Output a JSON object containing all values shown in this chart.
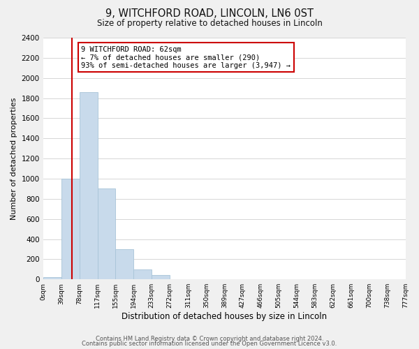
{
  "title": "9, WITCHFORD ROAD, LINCOLN, LN6 0ST",
  "subtitle": "Size of property relative to detached houses in Lincoln",
  "xlabel": "Distribution of detached houses by size in Lincoln",
  "ylabel": "Number of detached properties",
  "bar_color": "#c8daeb",
  "bar_edge_color": "#a8c4d8",
  "vline_color": "#cc0000",
  "vline_x": 62,
  "bin_edges": [
    0,
    39,
    78,
    117,
    155,
    194,
    233,
    272,
    311,
    350,
    389,
    427,
    466,
    505,
    544,
    583,
    622,
    661,
    700,
    738,
    777
  ],
  "bar_heights": [
    20,
    1000,
    1860,
    900,
    300,
    100,
    40,
    0,
    0,
    0,
    0,
    0,
    0,
    0,
    0,
    0,
    0,
    0,
    0,
    0
  ],
  "tick_labels": [
    "0sqm",
    "39sqm",
    "78sqm",
    "117sqm",
    "155sqm",
    "194sqm",
    "233sqm",
    "272sqm",
    "311sqm",
    "350sqm",
    "389sqm",
    "427sqm",
    "466sqm",
    "505sqm",
    "544sqm",
    "583sqm",
    "622sqm",
    "661sqm",
    "700sqm",
    "738sqm",
    "777sqm"
  ],
  "ylim": [
    0,
    2400
  ],
  "yticks": [
    0,
    200,
    400,
    600,
    800,
    1000,
    1200,
    1400,
    1600,
    1800,
    2000,
    2200,
    2400
  ],
  "annotation_title": "9 WITCHFORD ROAD: 62sqm",
  "annotation_line1": "← 7% of detached houses are smaller (290)",
  "annotation_line2": "93% of semi-detached houses are larger (3,947) →",
  "annotation_box_color": "#ffffff",
  "annotation_box_edge": "#cc0000",
  "footer_line1": "Contains HM Land Registry data © Crown copyright and database right 2024.",
  "footer_line2": "Contains public sector information licensed under the Open Government Licence v3.0.",
  "background_color": "#f0f0f0",
  "plot_background": "#ffffff",
  "grid_color": "#d0d0d0"
}
